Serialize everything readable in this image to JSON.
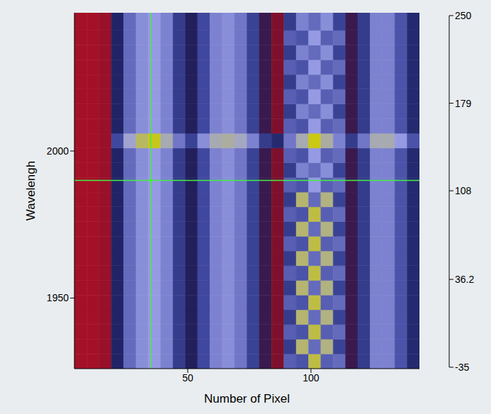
{
  "chart_data": {
    "type": "heatmap",
    "x_label": "Number of Pixel",
    "y_label": "Wavelengh",
    "xlim": [
      4,
      144
    ],
    "xticks": [
      50,
      100
    ],
    "ylim": [
      1926,
      2047
    ],
    "yticks": [
      1950,
      2000
    ],
    "x_edges": [
      4,
      9,
      14,
      19,
      24,
      29,
      34,
      39,
      44,
      49,
      54,
      59,
      64,
      69,
      74,
      79,
      84,
      89,
      94,
      99,
      104,
      109,
      114,
      119,
      124,
      129,
      134,
      139,
      144
    ],
    "y_edges": [
      1926,
      1931,
      1936,
      1941,
      1946,
      1951,
      1956,
      1961,
      1966,
      1971,
      1976,
      1981,
      1986,
      1991,
      1996,
      2001,
      2006,
      2011,
      2016,
      2021,
      2026,
      2031,
      2036,
      2041,
      2047
    ],
    "cells": [
      [
        5,
        5,
        8,
        40,
        85,
        100,
        105,
        95,
        60,
        35,
        70,
        95,
        100,
        90,
        65,
        30,
        15,
        80,
        75,
        160,
        80,
        85,
        30,
        60,
        95,
        95,
        75,
        45
      ],
      [
        5,
        5,
        8,
        40,
        85,
        100,
        105,
        95,
        60,
        35,
        70,
        95,
        100,
        90,
        65,
        30,
        15,
        60,
        145,
        85,
        140,
        65,
        30,
        60,
        95,
        95,
        75,
        45
      ],
      [
        5,
        5,
        8,
        40,
        85,
        100,
        105,
        95,
        60,
        35,
        70,
        95,
        100,
        90,
        65,
        30,
        15,
        80,
        75,
        160,
        80,
        85,
        30,
        60,
        95,
        95,
        75,
        45
      ],
      [
        5,
        5,
        8,
        40,
        85,
        100,
        105,
        95,
        60,
        35,
        70,
        95,
        100,
        90,
        65,
        30,
        15,
        60,
        145,
        85,
        140,
        65,
        30,
        60,
        95,
        95,
        75,
        45
      ],
      [
        5,
        5,
        8,
        40,
        85,
        100,
        105,
        95,
        60,
        35,
        70,
        95,
        100,
        90,
        65,
        30,
        15,
        80,
        75,
        160,
        80,
        85,
        30,
        60,
        95,
        95,
        75,
        45
      ],
      [
        5,
        5,
        8,
        40,
        85,
        100,
        105,
        95,
        60,
        35,
        70,
        95,
        100,
        90,
        65,
        30,
        15,
        60,
        145,
        85,
        140,
        65,
        30,
        60,
        95,
        95,
        75,
        45
      ],
      [
        5,
        5,
        8,
        40,
        85,
        100,
        105,
        95,
        60,
        35,
        70,
        95,
        100,
        90,
        65,
        30,
        15,
        80,
        75,
        160,
        80,
        85,
        30,
        60,
        95,
        95,
        75,
        45
      ],
      [
        5,
        5,
        8,
        40,
        85,
        100,
        105,
        95,
        60,
        35,
        70,
        95,
        100,
        90,
        65,
        30,
        15,
        60,
        145,
        85,
        140,
        65,
        30,
        60,
        95,
        95,
        75,
        45
      ],
      [
        5,
        5,
        8,
        40,
        85,
        100,
        105,
        95,
        60,
        35,
        70,
        95,
        100,
        90,
        65,
        30,
        15,
        80,
        75,
        160,
        80,
        85,
        30,
        60,
        95,
        95,
        75,
        45
      ],
      [
        5,
        5,
        8,
        40,
        85,
        100,
        105,
        95,
        60,
        35,
        70,
        95,
        100,
        90,
        65,
        30,
        15,
        60,
        145,
        85,
        140,
        65,
        30,
        60,
        95,
        95,
        75,
        45
      ],
      [
        5,
        5,
        8,
        40,
        85,
        100,
        105,
        95,
        60,
        35,
        70,
        95,
        100,
        90,
        65,
        30,
        15,
        80,
        75,
        160,
        80,
        85,
        30,
        60,
        95,
        95,
        75,
        45
      ],
      [
        5,
        5,
        8,
        40,
        85,
        100,
        105,
        95,
        60,
        35,
        70,
        95,
        100,
        90,
        65,
        30,
        15,
        60,
        145,
        85,
        140,
        65,
        30,
        60,
        95,
        95,
        75,
        45
      ],
      [
        5,
        5,
        8,
        40,
        85,
        100,
        105,
        95,
        60,
        35,
        70,
        95,
        100,
        90,
        65,
        30,
        15,
        80,
        75,
        105,
        80,
        85,
        30,
        60,
        95,
        95,
        75,
        45
      ],
      [
        5,
        5,
        8,
        40,
        85,
        100,
        105,
        95,
        60,
        35,
        70,
        95,
        100,
        90,
        65,
        30,
        15,
        60,
        95,
        85,
        100,
        65,
        30,
        60,
        95,
        95,
        75,
        45
      ],
      [
        5,
        5,
        8,
        40,
        85,
        100,
        105,
        95,
        60,
        35,
        70,
        95,
        100,
        90,
        65,
        30,
        15,
        80,
        75,
        105,
        80,
        85,
        30,
        60,
        95,
        95,
        75,
        45
      ],
      [
        5,
        5,
        8,
        70,
        115,
        150,
        175,
        125,
        90,
        65,
        100,
        125,
        130,
        120,
        95,
        60,
        45,
        90,
        125,
        180,
        130,
        95,
        60,
        90,
        125,
        125,
        105,
        75
      ],
      [
        5,
        5,
        8,
        40,
        85,
        100,
        105,
        95,
        60,
        35,
        70,
        95,
        100,
        90,
        65,
        30,
        15,
        80,
        75,
        105,
        80,
        85,
        30,
        60,
        95,
        95,
        75,
        45
      ],
      [
        5,
        5,
        8,
        40,
        85,
        100,
        105,
        95,
        60,
        35,
        70,
        95,
        100,
        90,
        65,
        30,
        15,
        60,
        95,
        85,
        100,
        65,
        30,
        60,
        95,
        95,
        75,
        45
      ],
      [
        5,
        5,
        8,
        40,
        85,
        100,
        105,
        95,
        60,
        35,
        70,
        95,
        100,
        90,
        65,
        30,
        15,
        80,
        75,
        105,
        80,
        85,
        30,
        60,
        95,
        95,
        75,
        45
      ],
      [
        5,
        5,
        8,
        40,
        85,
        100,
        105,
        95,
        60,
        35,
        70,
        95,
        100,
        90,
        65,
        30,
        15,
        60,
        95,
        85,
        100,
        65,
        30,
        60,
        95,
        95,
        75,
        45
      ],
      [
        5,
        5,
        8,
        40,
        85,
        100,
        105,
        95,
        60,
        35,
        70,
        95,
        100,
        90,
        65,
        30,
        15,
        80,
        75,
        105,
        80,
        85,
        30,
        60,
        95,
        95,
        75,
        45
      ],
      [
        5,
        5,
        8,
        40,
        85,
        100,
        105,
        95,
        60,
        35,
        70,
        95,
        100,
        90,
        65,
        30,
        15,
        60,
        95,
        85,
        100,
        65,
        30,
        60,
        95,
        95,
        75,
        45
      ],
      [
        5,
        5,
        8,
        40,
        85,
        100,
        105,
        95,
        60,
        35,
        70,
        95,
        100,
        90,
        65,
        30,
        15,
        80,
        75,
        105,
        80,
        85,
        30,
        60,
        95,
        95,
        75,
        45
      ],
      [
        5,
        5,
        8,
        40,
        85,
        100,
        105,
        95,
        60,
        35,
        70,
        95,
        100,
        90,
        65,
        30,
        15,
        60,
        95,
        85,
        100,
        65,
        30,
        60,
        95,
        95,
        75,
        45
      ]
    ],
    "colorbar": {
      "range": [
        -35,
        250
      ],
      "ticks": [
        -35,
        36.2,
        108,
        179,
        250
      ]
    },
    "crosshair": {
      "x": 35,
      "y": 1990,
      "color": "#44ee44"
    }
  }
}
